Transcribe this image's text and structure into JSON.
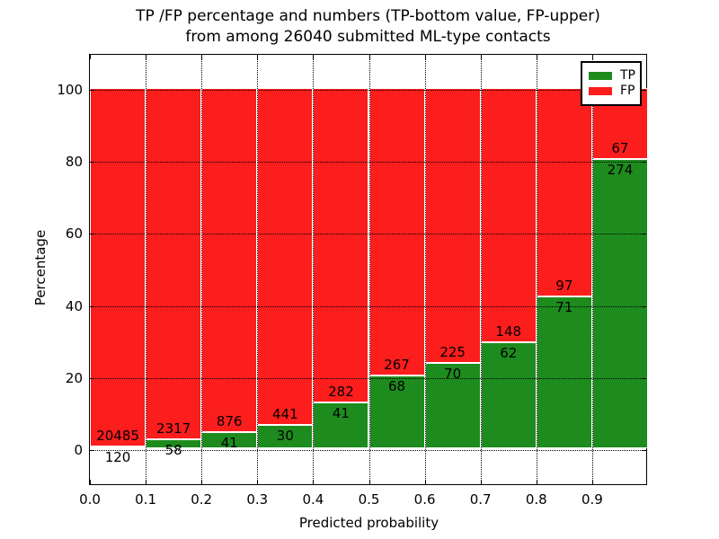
{
  "title": {
    "line1": "TP /FP percentage and numbers (TP-bottom value, FP-upper)",
    "line2": "from among 26040 submitted ML-type contacts"
  },
  "axes": {
    "xlabel": "Predicted probability",
    "ylabel": "Percentage",
    "xtick_labels": [
      "0.0",
      "0.1",
      "0.2",
      "0.3",
      "0.4",
      "0.5",
      "0.6",
      "0.7",
      "0.8",
      "0.9"
    ],
    "ytick_labels": [
      "0",
      "20",
      "40",
      "60",
      "80",
      "100"
    ]
  },
  "legend": {
    "items": [
      {
        "label": "TP",
        "color": "#1e8b1e"
      },
      {
        "label": "FP",
        "color": "#fc1d1d"
      }
    ]
  },
  "colors": {
    "tp": "#1e8b1e",
    "fp": "#fc1d1d",
    "grid": "#000000",
    "bar_edge": "#ffffff",
    "background": "#ffffff"
  },
  "chart_data": {
    "type": "bar",
    "stacked": true,
    "normalized_to_percent": true,
    "title": "TP /FP percentage and numbers (TP-bottom value, FP-upper) from among 26040 submitted ML-type contacts",
    "xlabel": "Predicted probability",
    "ylabel": "Percentage",
    "total_contacts": 26040,
    "bin_starts": [
      0.0,
      0.1,
      0.2,
      0.3,
      0.4,
      0.5,
      0.6,
      0.7,
      0.8,
      0.9
    ],
    "bin_width": 0.1,
    "categories": [
      "0.0-0.1",
      "0.1-0.2",
      "0.2-0.3",
      "0.3-0.4",
      "0.4-0.5",
      "0.5-0.6",
      "0.6-0.7",
      "0.7-0.8",
      "0.8-0.9",
      "0.9-1.0"
    ],
    "series": [
      {
        "name": "TP",
        "counts": [
          120,
          58,
          41,
          30,
          41,
          68,
          70,
          62,
          71,
          274
        ]
      },
      {
        "name": "FP",
        "counts": [
          20485,
          2317,
          876,
          441,
          282,
          267,
          225,
          148,
          97,
          67
        ]
      }
    ],
    "tp_percent": [
      0.58,
      2.44,
      4.47,
      6.37,
      12.69,
      20.3,
      23.73,
      29.52,
      42.26,
      80.35
    ],
    "xlim": [
      0.0,
      1.0
    ],
    "ylim": [
      -10,
      110
    ],
    "xticks": [
      0.0,
      0.1,
      0.2,
      0.3,
      0.4,
      0.5,
      0.6,
      0.7,
      0.8,
      0.9
    ],
    "yticks": [
      0,
      20,
      40,
      60,
      80,
      100
    ],
    "grid": "dotted, on",
    "legend_position": "upper right"
  }
}
